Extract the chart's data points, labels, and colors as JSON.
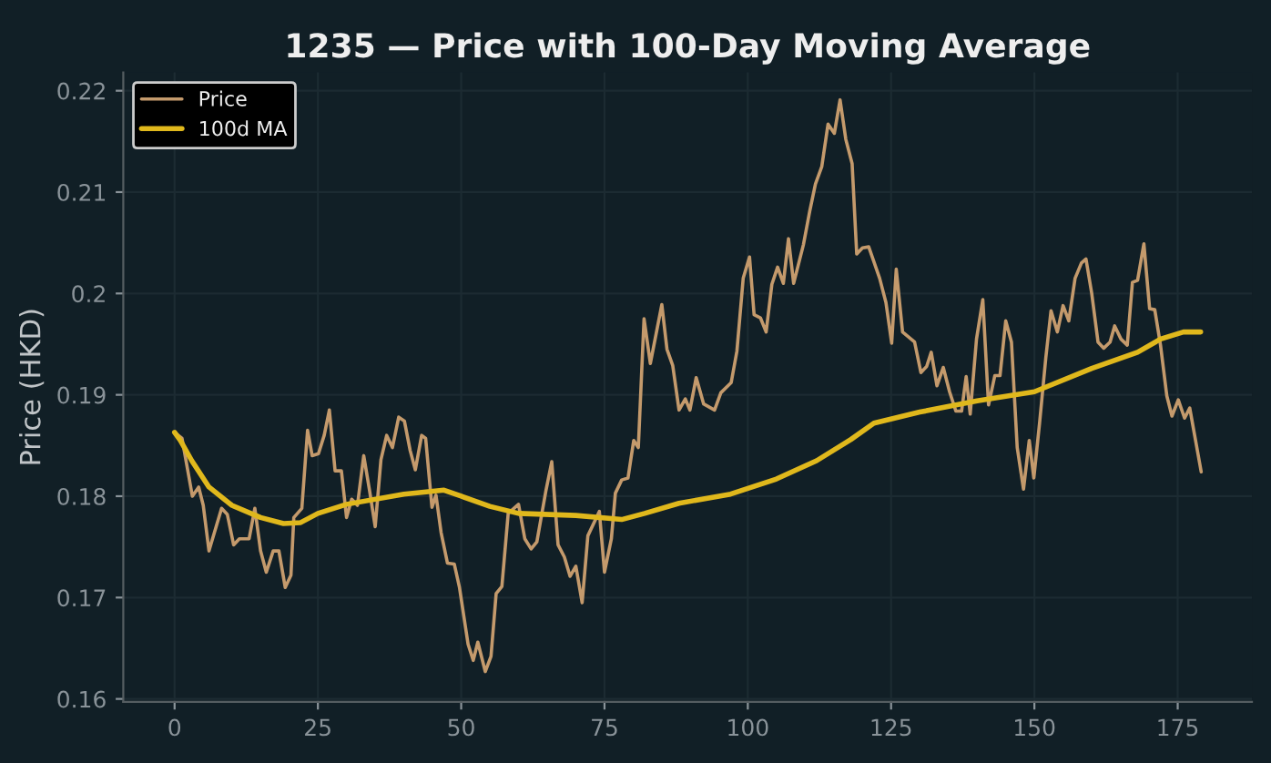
{
  "chart_data": {
    "type": "line",
    "title": "1235 — Price with 100-Day Moving Average",
    "ylabel": "Price (HKD)",
    "xlim": [
      -8.95,
      187.95
    ],
    "xticks": [
      0,
      25,
      50,
      75,
      100,
      125,
      150,
      175
    ],
    "ylim": [
      0.1597,
      0.2218
    ],
    "yticks": [
      0.16,
      0.17,
      0.18,
      0.19,
      0.2,
      0.21,
      0.22
    ],
    "grid": true,
    "legend": "top left",
    "marker": "none",
    "line_style": "solid",
    "series": [
      {
        "name": "Price",
        "color": "#c49a6c",
        "x": [
          0,
          1.3,
          3.1,
          4.2,
          5,
          6,
          8.2,
          9.2,
          10.3,
          11.3,
          13,
          14,
          15,
          16,
          17.2,
          18.2,
          19.3,
          20.3,
          20.8,
          22.2,
          23.2,
          24,
          25.1,
          26.1,
          27,
          28,
          29.1,
          30,
          30.9,
          31.9,
          33,
          34,
          35,
          36,
          37,
          38,
          39.1,
          40.1,
          41.1,
          42,
          43.1,
          43.8,
          44.9,
          45.6,
          46.5,
          47.6,
          48.8,
          49.7,
          51.2,
          52.1,
          52.9,
          54.2,
          55.2,
          56.1,
          57.1,
          58.2,
          60,
          61.1,
          62.2,
          63.2,
          64.8,
          65.8,
          66.9,
          68,
          69,
          70,
          71.1,
          72.1,
          74.1,
          75,
          76.2,
          76.9,
          78,
          79.1,
          80.1,
          80.9,
          81.9,
          83,
          85,
          85.9,
          86.9,
          88,
          89.1,
          89.9,
          91,
          92.3,
          94.2,
          95.3,
          97.1,
          98.1,
          99.2,
          100.3,
          101.1,
          102.2,
          103.2,
          104.2,
          105.2,
          106.2,
          107.1,
          108,
          109.7,
          110.8,
          111.8,
          112.9,
          114,
          115.1,
          116.1,
          117.1,
          118.2,
          119,
          120,
          121.1,
          123,
          124.1,
          125.1,
          125.9,
          127,
          129.1,
          130.2,
          131.2,
          132,
          133,
          134.1,
          135.2,
          136.3,
          137.3,
          138.1,
          138.8,
          139.9,
          141,
          142,
          143.1,
          144,
          145,
          146,
          147,
          148.1,
          149.1,
          149.9,
          150.9,
          152,
          152.9,
          154,
          155,
          156,
          157.1,
          158.2,
          159,
          160,
          161.1,
          162.1,
          163.2,
          164,
          165.1,
          166.2,
          167.1,
          168,
          169.1,
          170.1,
          171,
          172,
          173.1,
          174,
          175.1,
          176.2,
          177.1,
          179.1
        ],
        "values": [
          0.1863,
          0.1857,
          0.18,
          0.1809,
          0.1791,
          0.1746,
          0.1788,
          0.1782,
          0.1752,
          0.1758,
          0.1758,
          0.1788,
          0.1746,
          0.1725,
          0.1746,
          0.1746,
          0.171,
          0.1722,
          0.1779,
          0.1788,
          0.1865,
          0.184,
          0.1842,
          0.186,
          0.1885,
          0.1825,
          0.1825,
          0.1779,
          0.1797,
          0.1791,
          0.184,
          0.1806,
          0.177,
          0.1836,
          0.186,
          0.1848,
          0.1878,
          0.1874,
          0.1845,
          0.1826,
          0.186,
          0.1857,
          0.1789,
          0.1801,
          0.1764,
          0.1734,
          0.1733,
          0.171,
          0.1654,
          0.1638,
          0.1656,
          0.1627,
          0.1642,
          0.1704,
          0.1711,
          0.1783,
          0.1792,
          0.1758,
          0.1748,
          0.1755,
          0.1806,
          0.1834,
          0.1752,
          0.174,
          0.1721,
          0.1731,
          0.1695,
          0.1761,
          0.1785,
          0.1725,
          0.1758,
          0.1803,
          0.1816,
          0.1818,
          0.1855,
          0.1848,
          0.1975,
          0.1931,
          0.1989,
          0.1945,
          0.1929,
          0.1885,
          0.1896,
          0.1885,
          0.1917,
          0.1891,
          0.1885,
          0.1902,
          0.1912,
          0.1943,
          0.2015,
          0.2036,
          0.1979,
          0.1976,
          0.1962,
          0.2009,
          0.2026,
          0.201,
          0.2054,
          0.201,
          0.2048,
          0.2081,
          0.2108,
          0.2125,
          0.2167,
          0.2158,
          0.2191,
          0.2152,
          0.2128,
          0.2039,
          0.2045,
          0.2046,
          0.2015,
          0.1991,
          0.1951,
          0.2024,
          0.1962,
          0.1952,
          0.1922,
          0.1928,
          0.1942,
          0.1909,
          0.1927,
          0.1903,
          0.1884,
          0.1884,
          0.1918,
          0.1881,
          0.1955,
          0.1994,
          0.189,
          0.1919,
          0.1919,
          0.1973,
          0.1952,
          0.1848,
          0.1807,
          0.1855,
          0.1818,
          0.1872,
          0.1937,
          0.1983,
          0.1962,
          0.1988,
          0.1973,
          0.2015,
          0.203,
          0.2034,
          0.2,
          0.1952,
          0.1946,
          0.1952,
          0.1968,
          0.1955,
          0.1949,
          0.2011,
          0.2013,
          0.2049,
          0.1985,
          0.1984,
          0.1949,
          0.1899,
          0.1879,
          0.1895,
          0.1877,
          0.1887,
          0.1824
        ]
      },
      {
        "name": "100d MA",
        "color": "#e0b81c",
        "x": [
          0,
          1,
          3,
          6,
          10,
          15,
          19,
          22,
          25,
          30,
          40,
          47,
          50,
          55,
          60,
          70,
          78,
          82,
          88,
          97,
          105,
          112,
          118,
          122,
          130,
          140,
          150,
          160,
          168,
          172,
          176,
          179
        ],
        "values": [
          0.1863,
          0.1855,
          0.1835,
          0.1809,
          0.1791,
          0.1779,
          0.1773,
          0.1774,
          0.1783,
          0.1792,
          0.1802,
          0.1806,
          0.18,
          0.179,
          0.1783,
          0.1781,
          0.1777,
          0.1783,
          0.1793,
          0.1802,
          0.1817,
          0.1835,
          0.1856,
          0.1872,
          0.1883,
          0.1894,
          0.1903,
          0.1926,
          0.1942,
          0.1955,
          0.1962,
          0.1962
        ]
      }
    ]
  }
}
